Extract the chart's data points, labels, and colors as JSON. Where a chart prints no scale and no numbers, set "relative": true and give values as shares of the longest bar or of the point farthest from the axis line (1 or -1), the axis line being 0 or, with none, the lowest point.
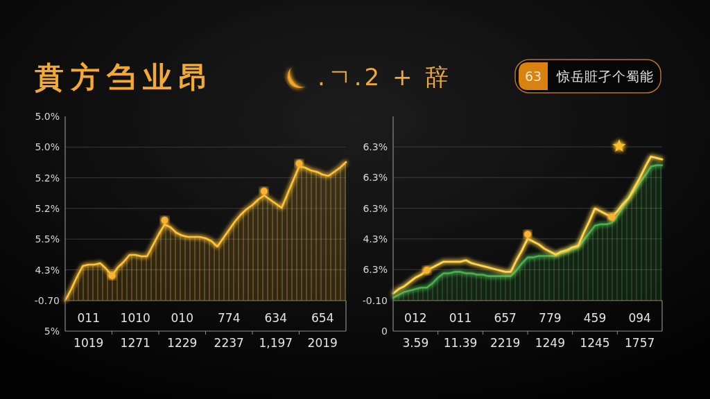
{
  "chart_data": [
    {
      "type": "area",
      "title": "賁方刍业昂",
      "subtitle": ".ㄱ.2 + 辞",
      "relative": true,
      "annotations": [
        "5.0%",
        "5.0%",
        "5.2%",
        "5.2%",
        "5.5%",
        "4.3%",
        "-0.70",
        "5%"
      ],
      "categories": [
        null,
        null,
        null,
        null,
        "011\n1019",
        null,
        null,
        null,
        null,
        null,
        null,
        null,
        "1010\n1271",
        null,
        null,
        null,
        null,
        null,
        null,
        null,
        "010\n1229",
        null,
        null,
        null,
        null,
        null,
        null,
        null,
        "774\n2237",
        null,
        null,
        null,
        null,
        null,
        null,
        null,
        "634\n1,197",
        null,
        null,
        null,
        null,
        null,
        null,
        null,
        "654\n2019",
        null,
        null,
        null,
        null
      ],
      "grid": "y",
      "series": [
        {
          "type": "area",
          "color": "#ffc23a",
          "values": [
            0,
            0.08,
            0.17,
            0.25,
            0.26,
            0.26,
            0.27,
            0.23,
            0.18,
            0.24,
            0.28,
            0.33,
            0.33,
            0.32,
            0.32,
            0.4,
            0.48,
            0.55,
            0.53,
            0.49,
            0.47,
            0.46,
            0.46,
            0.46,
            0.45,
            0.43,
            0.39,
            0.45,
            0.51,
            0.57,
            0.62,
            0.66,
            0.69,
            0.73,
            0.76,
            0.73,
            0.7,
            0.67,
            0.77,
            0.87,
            0.97,
            0.96,
            0.94,
            0.93,
            0.91,
            0.9,
            0.93,
            0.96,
            1
          ]
        },
        {
          "type": "scatter",
          "color": "#f9b233",
          "marker": "circle",
          "values": [
            null,
            null,
            null,
            null,
            null,
            null,
            null,
            null,
            0.18,
            null,
            null,
            null,
            null,
            null,
            null,
            null,
            null,
            0.58,
            null,
            null,
            null,
            null,
            null,
            null,
            null,
            null,
            null,
            null,
            null,
            null,
            null,
            null,
            null,
            null,
            0.79,
            null,
            null,
            null,
            null,
            null,
            0.99,
            null,
            null,
            null,
            null,
            null,
            null,
            null,
            null
          ]
        }
      ]
    },
    {
      "type": "area",
      "title": "惊岳賍孑个蜀能",
      "subtitle": "63",
      "relative": true,
      "annotations": [
        "6.3%",
        "6.3%",
        "6.3%",
        "4.3%",
        "6.3%",
        "-0.10",
        "0"
      ],
      "categories": [
        null,
        null,
        null,
        null,
        "012\n3.59",
        null,
        null,
        null,
        null,
        null,
        null,
        null,
        "011\n11.39",
        null,
        null,
        null,
        null,
        null,
        null,
        null,
        "657\n2219",
        null,
        null,
        null,
        null,
        null,
        null,
        null,
        "779\n1249",
        null,
        null,
        null,
        null,
        null,
        null,
        null,
        "459\n1245",
        null,
        null,
        null,
        null,
        null,
        null,
        null,
        "094\n1757",
        null,
        null,
        null,
        null
      ],
      "grid": "y",
      "series": [
        {
          "type": "area",
          "color": "#4caf50",
          "values": [
            0.02,
            0.04,
            0.06,
            0.07,
            0.08,
            0.09,
            0.09,
            0.12,
            0.16,
            0.19,
            0.19,
            0.2,
            0.2,
            0.19,
            0.19,
            0.18,
            0.18,
            0.17,
            0.17,
            0.17,
            0.17,
            0.17,
            0.21,
            0.26,
            0.3,
            0.3,
            0.31,
            0.31,
            0.31,
            0.31,
            0.33,
            0.34,
            0.36,
            0.37,
            0.42,
            0.47,
            0.52,
            0.53,
            0.53,
            0.54,
            0.59,
            0.65,
            0.71,
            0.76,
            0.82,
            0.87,
            0.93,
            0.94,
            0.94
          ]
        },
        {
          "type": "line",
          "color": "#ffd54f",
          "values": [
            0.05,
            0.08,
            0.1,
            0.13,
            0.16,
            0.18,
            0.21,
            0.23,
            0.25,
            0.27,
            0.27,
            0.27,
            0.27,
            0.28,
            0.26,
            0.25,
            0.24,
            0.23,
            0.22,
            0.21,
            0.2,
            0.2,
            0.28,
            0.35,
            0.43,
            0.41,
            0.39,
            0.36,
            0.34,
            0.32,
            0.34,
            0.35,
            0.37,
            0.38,
            0.47,
            0.55,
            0.64,
            0.62,
            0.6,
            0.58,
            0.62,
            0.67,
            0.71,
            0.78,
            0.85,
            0.93,
            1,
            0.99,
            0.98
          ]
        },
        {
          "type": "scatter",
          "color": "#f9b233",
          "marker": "circle",
          "values": [
            null,
            null,
            null,
            null,
            null,
            null,
            0.21,
            null,
            null,
            null,
            null,
            null,
            null,
            null,
            null,
            null,
            null,
            null,
            null,
            null,
            null,
            null,
            null,
            null,
            0.46,
            null,
            null,
            null,
            null,
            null,
            null,
            null,
            null,
            null,
            null,
            null,
            null,
            null,
            null,
            0.58,
            null,
            null,
            null,
            null,
            null,
            null,
            null,
            null,
            null
          ]
        }
      ]
    }
  ]
}
